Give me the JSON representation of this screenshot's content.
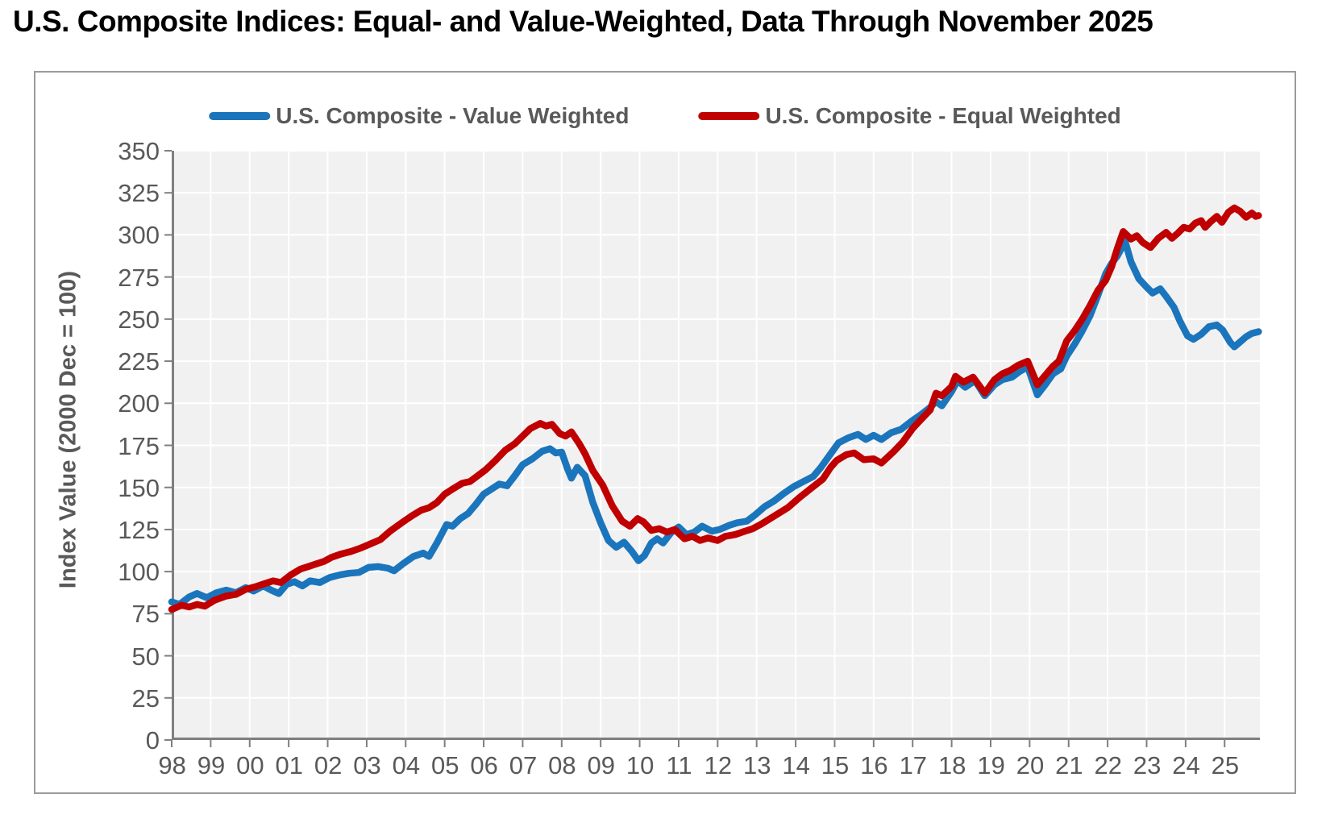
{
  "title": "U.S. Composite Indices: Equal- and Value-Weighted, Data Through November 2025",
  "colors": {
    "plot_bg": "#F1F1F1",
    "gridline": "#FFFFFF",
    "axis": "#7F7F7F",
    "tick_text": "#595959",
    "value_weighted_blue": "#1B75BC",
    "equal_weighted_red": "#C00000"
  },
  "chart_data": {
    "type": "line",
    "title": "U.S. Composite Indices: Equal- and Value-Weighted, Data Through November 2025",
    "xlabel": "",
    "ylabel": "Index Value (2000 Dec = 100)",
    "ylim": [
      0,
      350
    ],
    "xlim": [
      1998,
      2025.92
    ],
    "grid": true,
    "legend_position": "top",
    "y_ticks": [
      "0",
      "25",
      "50",
      "75",
      "100",
      "125",
      "150",
      "175",
      "200",
      "225",
      "250",
      "275",
      "300",
      "325",
      "350"
    ],
    "x_ticks": [
      "98",
      "99",
      "00",
      "01",
      "02",
      "03",
      "04",
      "05",
      "06",
      "07",
      "08",
      "09",
      "10",
      "11",
      "12",
      "13",
      "14",
      "15",
      "16",
      "17",
      "18",
      "19",
      "20",
      "21",
      "22",
      "23",
      "24",
      "25"
    ],
    "series": [
      {
        "name": "U.S. Composite - Value Weighted",
        "color": "#1B75BC",
        "points": [
          [
            1998.0,
            82
          ],
          [
            1998.2,
            80.5
          ],
          [
            1998.45,
            85
          ],
          [
            1998.65,
            87
          ],
          [
            1998.9,
            84.5
          ],
          [
            1999.15,
            87.5
          ],
          [
            1999.4,
            89
          ],
          [
            1999.65,
            87.5
          ],
          [
            1999.9,
            90.5
          ],
          [
            2000.1,
            88.5
          ],
          [
            2000.35,
            91.5
          ],
          [
            2000.55,
            89
          ],
          [
            2000.75,
            87
          ],
          [
            2000.95,
            92.5
          ],
          [
            2001.15,
            94
          ],
          [
            2001.35,
            91.5
          ],
          [
            2001.55,
            94.5
          ],
          [
            2001.8,
            93.5
          ],
          [
            2002.05,
            96.5
          ],
          [
            2002.3,
            98
          ],
          [
            2002.55,
            99
          ],
          [
            2002.8,
            99.5
          ],
          [
            2003.05,
            102.5
          ],
          [
            2003.3,
            103
          ],
          [
            2003.55,
            102
          ],
          [
            2003.7,
            100.5
          ],
          [
            2003.95,
            105
          ],
          [
            2004.2,
            109
          ],
          [
            2004.45,
            111
          ],
          [
            2004.6,
            109
          ],
          [
            2004.8,
            117
          ],
          [
            2005.05,
            128
          ],
          [
            2005.2,
            127
          ],
          [
            2005.4,
            131.5
          ],
          [
            2005.6,
            134.5
          ],
          [
            2005.8,
            140
          ],
          [
            2006.0,
            146
          ],
          [
            2006.2,
            149
          ],
          [
            2006.4,
            152
          ],
          [
            2006.6,
            151
          ],
          [
            2006.8,
            157
          ],
          [
            2007.0,
            163.5
          ],
          [
            2007.25,
            167
          ],
          [
            2007.5,
            171.5
          ],
          [
            2007.7,
            173
          ],
          [
            2007.85,
            170.5
          ],
          [
            2008.0,
            171
          ],
          [
            2008.15,
            161
          ],
          [
            2008.25,
            155.5
          ],
          [
            2008.4,
            162
          ],
          [
            2008.6,
            157
          ],
          [
            2008.8,
            141
          ],
          [
            2009.0,
            129
          ],
          [
            2009.2,
            118.5
          ],
          [
            2009.4,
            114.5
          ],
          [
            2009.6,
            117.5
          ],
          [
            2009.8,
            112
          ],
          [
            2009.97,
            106.5
          ],
          [
            2010.12,
            109.5
          ],
          [
            2010.3,
            117
          ],
          [
            2010.45,
            119.5
          ],
          [
            2010.6,
            117
          ],
          [
            2010.8,
            123
          ],
          [
            2011.0,
            126.5
          ],
          [
            2011.2,
            122
          ],
          [
            2011.4,
            123.5
          ],
          [
            2011.6,
            127
          ],
          [
            2011.85,
            124
          ],
          [
            2012.05,
            125
          ],
          [
            2012.3,
            127.5
          ],
          [
            2012.5,
            129
          ],
          [
            2012.75,
            130
          ],
          [
            2012.95,
            133.5
          ],
          [
            2013.2,
            138.5
          ],
          [
            2013.45,
            142
          ],
          [
            2013.7,
            146.5
          ],
          [
            2013.95,
            150.5
          ],
          [
            2014.2,
            153.5
          ],
          [
            2014.45,
            156.5
          ],
          [
            2014.65,
            162
          ],
          [
            2014.9,
            170
          ],
          [
            2015.1,
            176.5
          ],
          [
            2015.35,
            179.5
          ],
          [
            2015.6,
            181.5
          ],
          [
            2015.8,
            178.5
          ],
          [
            2016.0,
            181
          ],
          [
            2016.2,
            178.5
          ],
          [
            2016.45,
            182.5
          ],
          [
            2016.7,
            184.5
          ],
          [
            2016.95,
            189
          ],
          [
            2017.2,
            193
          ],
          [
            2017.45,
            197.5
          ],
          [
            2017.6,
            201
          ],
          [
            2017.75,
            198.5
          ],
          [
            2018.0,
            207
          ],
          [
            2018.15,
            213.5
          ],
          [
            2018.35,
            209.5
          ],
          [
            2018.6,
            213.5
          ],
          [
            2018.85,
            204.5
          ],
          [
            2019.1,
            211
          ],
          [
            2019.3,
            214
          ],
          [
            2019.55,
            215.5
          ],
          [
            2019.75,
            219
          ],
          [
            2019.95,
            221.5
          ],
          [
            2020.2,
            205
          ],
          [
            2020.4,
            211
          ],
          [
            2020.6,
            217.5
          ],
          [
            2020.8,
            220.5
          ],
          [
            2020.95,
            228
          ],
          [
            2021.15,
            235
          ],
          [
            2021.35,
            243
          ],
          [
            2021.55,
            252
          ],
          [
            2021.75,
            264
          ],
          [
            2021.95,
            277
          ],
          [
            2022.1,
            283
          ],
          [
            2022.25,
            287.5
          ],
          [
            2022.45,
            296
          ],
          [
            2022.6,
            284
          ],
          [
            2022.8,
            274
          ],
          [
            2023.0,
            269
          ],
          [
            2023.15,
            265.5
          ],
          [
            2023.35,
            268
          ],
          [
            2023.5,
            263.5
          ],
          [
            2023.7,
            257
          ],
          [
            2023.85,
            249
          ],
          [
            2024.05,
            240
          ],
          [
            2024.2,
            238
          ],
          [
            2024.4,
            241
          ],
          [
            2024.6,
            245.5
          ],
          [
            2024.8,
            246.5
          ],
          [
            2024.95,
            243.5
          ],
          [
            2025.15,
            236
          ],
          [
            2025.25,
            233.5
          ],
          [
            2025.4,
            236.5
          ],
          [
            2025.55,
            239.5
          ],
          [
            2025.7,
            241.5
          ],
          [
            2025.87,
            242.5
          ]
        ]
      },
      {
        "name": "U.S. Composite - Equal Weighted",
        "color": "#C00000",
        "points": [
          [
            1998.0,
            77.5
          ],
          [
            1998.25,
            80
          ],
          [
            1998.45,
            79
          ],
          [
            1998.65,
            80.5
          ],
          [
            1998.85,
            79.5
          ],
          [
            1999.1,
            83
          ],
          [
            1999.4,
            85.5
          ],
          [
            1999.65,
            86.5
          ],
          [
            1999.9,
            89.5
          ],
          [
            2000.15,
            91
          ],
          [
            2000.4,
            93
          ],
          [
            2000.6,
            94.5
          ],
          [
            2000.8,
            93.5
          ],
          [
            2001.05,
            98
          ],
          [
            2001.3,
            101.5
          ],
          [
            2001.5,
            103
          ],
          [
            2001.7,
            104.5
          ],
          [
            2001.9,
            106
          ],
          [
            2002.1,
            108.5
          ],
          [
            2002.35,
            110.5
          ],
          [
            2002.6,
            112
          ],
          [
            2002.85,
            114
          ],
          [
            2003.1,
            116.5
          ],
          [
            2003.35,
            119
          ],
          [
            2003.6,
            124
          ],
          [
            2003.9,
            129
          ],
          [
            2004.15,
            133
          ],
          [
            2004.4,
            136.5
          ],
          [
            2004.6,
            138
          ],
          [
            2004.8,
            141
          ],
          [
            2005.0,
            146
          ],
          [
            2005.2,
            149
          ],
          [
            2005.45,
            152.5
          ],
          [
            2005.65,
            153.5
          ],
          [
            2005.85,
            157
          ],
          [
            2006.05,
            160.5
          ],
          [
            2006.3,
            166
          ],
          [
            2006.55,
            172
          ],
          [
            2006.8,
            176
          ],
          [
            2007.0,
            180.5
          ],
          [
            2007.2,
            185
          ],
          [
            2007.45,
            188
          ],
          [
            2007.6,
            186.5
          ],
          [
            2007.75,
            187.5
          ],
          [
            2007.95,
            182
          ],
          [
            2008.1,
            180.5
          ],
          [
            2008.25,
            183
          ],
          [
            2008.45,
            176
          ],
          [
            2008.6,
            170
          ],
          [
            2008.8,
            160
          ],
          [
            2009.05,
            151.5
          ],
          [
            2009.3,
            139
          ],
          [
            2009.55,
            130
          ],
          [
            2009.75,
            127
          ],
          [
            2009.95,
            131.5
          ],
          [
            2010.1,
            129.5
          ],
          [
            2010.3,
            124.5
          ],
          [
            2010.5,
            125.5
          ],
          [
            2010.7,
            123.5
          ],
          [
            2010.9,
            125
          ],
          [
            2011.15,
            119.5
          ],
          [
            2011.35,
            121
          ],
          [
            2011.55,
            118.5
          ],
          [
            2011.75,
            120
          ],
          [
            2012.0,
            118.5
          ],
          [
            2012.2,
            121
          ],
          [
            2012.45,
            122
          ],
          [
            2012.7,
            124
          ],
          [
            2012.9,
            125.5
          ],
          [
            2013.1,
            128
          ],
          [
            2013.45,
            133
          ],
          [
            2013.8,
            138
          ],
          [
            2014.1,
            144
          ],
          [
            2014.45,
            150.5
          ],
          [
            2014.7,
            155
          ],
          [
            2014.9,
            162
          ],
          [
            2015.05,
            166
          ],
          [
            2015.3,
            169.5
          ],
          [
            2015.5,
            170.5
          ],
          [
            2015.75,
            166.5
          ],
          [
            2016.0,
            167
          ],
          [
            2016.2,
            164.5
          ],
          [
            2016.5,
            171
          ],
          [
            2016.75,
            177
          ],
          [
            2017.0,
            185
          ],
          [
            2017.2,
            190
          ],
          [
            2017.45,
            196
          ],
          [
            2017.6,
            206
          ],
          [
            2017.75,
            204.5
          ],
          [
            2018.0,
            210
          ],
          [
            2018.1,
            216
          ],
          [
            2018.3,
            212.5
          ],
          [
            2018.55,
            215.5
          ],
          [
            2018.85,
            206
          ],
          [
            2019.1,
            214
          ],
          [
            2019.3,
            217.5
          ],
          [
            2019.5,
            219.5
          ],
          [
            2019.7,
            222.5
          ],
          [
            2019.95,
            225
          ],
          [
            2020.2,
            211
          ],
          [
            2020.4,
            216.5
          ],
          [
            2020.6,
            222
          ],
          [
            2020.75,
            225
          ],
          [
            2020.95,
            237
          ],
          [
            2021.15,
            243
          ],
          [
            2021.35,
            250
          ],
          [
            2021.55,
            258
          ],
          [
            2021.75,
            267
          ],
          [
            2021.95,
            273
          ],
          [
            2022.1,
            281
          ],
          [
            2022.25,
            292
          ],
          [
            2022.4,
            302
          ],
          [
            2022.6,
            297.5
          ],
          [
            2022.75,
            299.5
          ],
          [
            2022.9,
            295.5
          ],
          [
            2023.1,
            292.5
          ],
          [
            2023.3,
            298
          ],
          [
            2023.5,
            301.5
          ],
          [
            2023.65,
            298
          ],
          [
            2023.8,
            301
          ],
          [
            2023.95,
            304.5
          ],
          [
            2024.1,
            303.5
          ],
          [
            2024.25,
            307
          ],
          [
            2024.4,
            308.5
          ],
          [
            2024.5,
            304.5
          ],
          [
            2024.65,
            308
          ],
          [
            2024.8,
            311
          ],
          [
            2024.93,
            307.5
          ],
          [
            2025.1,
            313.5
          ],
          [
            2025.25,
            316
          ],
          [
            2025.4,
            314
          ],
          [
            2025.55,
            310.5
          ],
          [
            2025.7,
            313
          ],
          [
            2025.8,
            311
          ],
          [
            2025.87,
            311.5
          ]
        ]
      }
    ]
  }
}
